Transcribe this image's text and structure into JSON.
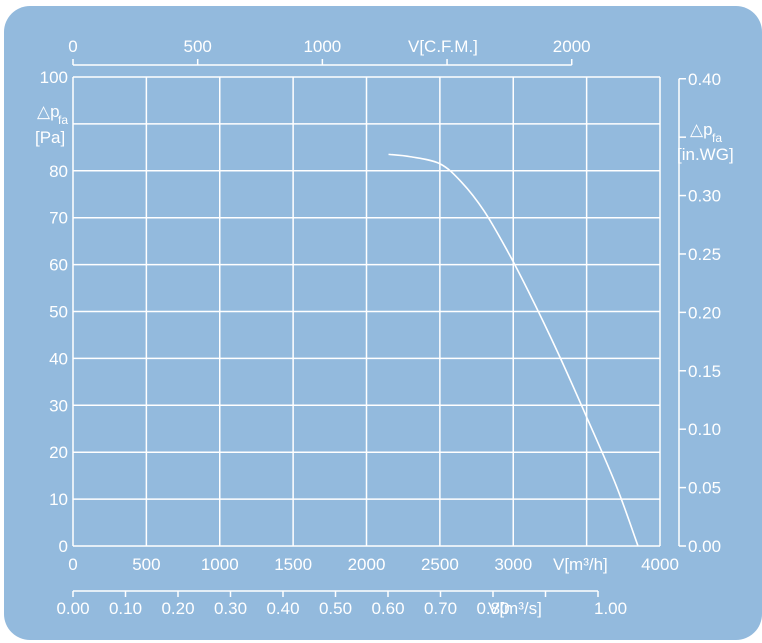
{
  "chart_data": {
    "type": "line",
    "x_bottom": {
      "label": "V[m³/h]",
      "ticks": [
        "0",
        "500",
        "1000",
        "1500",
        "2000",
        "2500",
        "3000",
        "4000"
      ],
      "tick_values": [
        0,
        500,
        1000,
        1500,
        2000,
        2500,
        3000,
        4000
      ],
      "range": [
        0,
        4000
      ]
    },
    "x_top": {
      "label": "V[C.F.M.]",
      "ticks": [
        "0",
        "500",
        "1000",
        "2000"
      ],
      "tick_values": [
        0,
        500,
        1000,
        2000
      ],
      "range": [
        0,
        2354
      ]
    },
    "x_extra": {
      "label": "V[m³/s]",
      "ticks": [
        "0.00",
        "0.10",
        "0.20",
        "0.30",
        "0.40",
        "0.50",
        "0.60",
        "0.70",
        "0.80",
        "1.00"
      ],
      "tick_values": [
        0.0,
        0.1,
        0.2,
        0.3,
        0.4,
        0.5,
        0.6,
        0.7,
        0.8,
        1.0
      ],
      "range": [
        0,
        1.0
      ]
    },
    "y_left": {
      "label_main": "△p",
      "label_sub": "fa",
      "unit": "[Pa]",
      "ticks": [
        "0",
        "10",
        "20",
        "30",
        "40",
        "50",
        "60",
        "70",
        "80",
        "100"
      ],
      "tick_values": [
        0,
        10,
        20,
        30,
        40,
        50,
        60,
        70,
        80,
        100
      ],
      "range": [
        0,
        100
      ]
    },
    "y_right": {
      "label_main": "△p",
      "label_sub": "fa",
      "unit": "[in.WG]",
      "ticks": [
        "0.00",
        "0.05",
        "0.10",
        "0.15",
        "0.20",
        "0.25",
        "0.30",
        "0.40"
      ],
      "tick_values": [
        0.0,
        0.05,
        0.1,
        0.15,
        0.2,
        0.25,
        0.3,
        0.4
      ],
      "range": [
        0,
        0.4015
      ]
    },
    "grid": true,
    "series": [
      {
        "x": [
          2150,
          2300,
          2500,
          2650,
          2800,
          2950,
          3100,
          3300,
          3500,
          3700,
          3850
        ],
        "y": [
          83.5,
          83,
          81.5,
          77.5,
          71.5,
          63.5,
          54.5,
          41.5,
          27.5,
          13,
          0
        ]
      }
    ],
    "colors": {
      "background": "#93badd",
      "lines": "#ffffff"
    }
  }
}
